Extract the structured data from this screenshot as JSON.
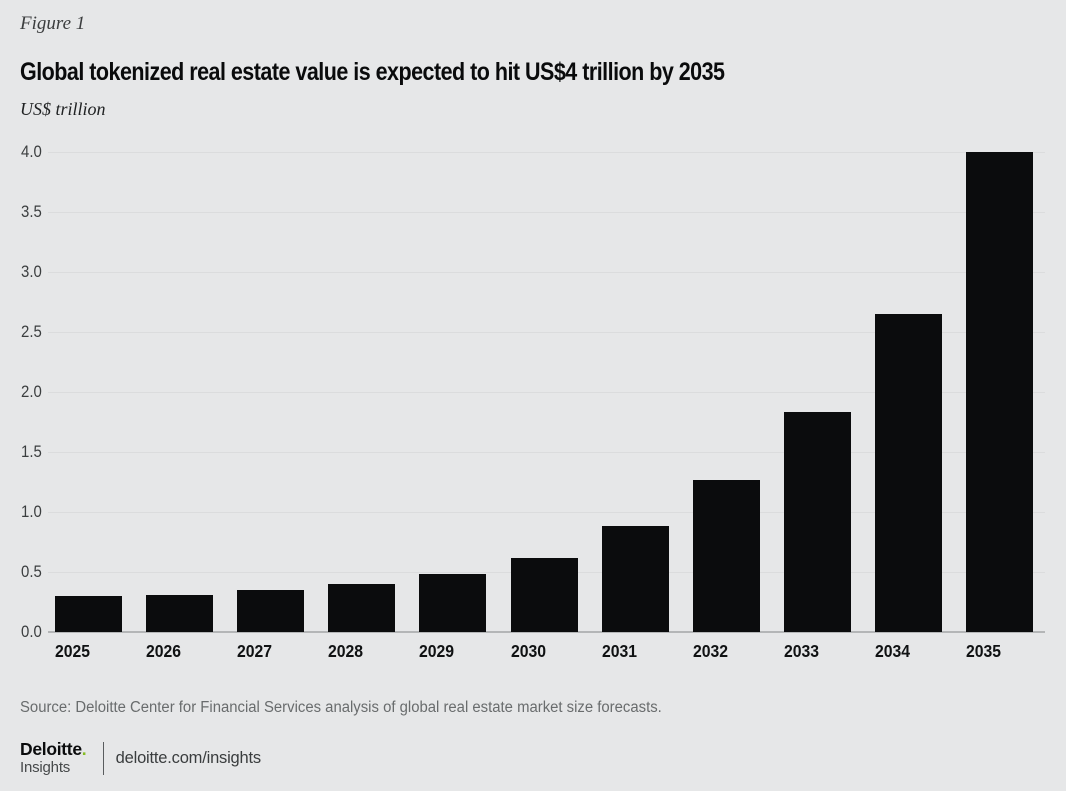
{
  "figure_label": "Figure 1",
  "title": "Global tokenized real estate value is expected to hit US$4 trillion by 2035",
  "subtitle": "US$ trillion",
  "source": "Source: Deloitte Center for Financial Services analysis of global real estate market size forecasts.",
  "footer": {
    "brand": "Deloitte",
    "brand_dot": ".",
    "brand_sub": "Insights",
    "url": "deloitte.com/insights"
  },
  "colors": {
    "background": "#e6e7e8",
    "bar": "#0b0c0d",
    "gridline": "#dbdcdd",
    "baseline": "#b4b6b7",
    "accent_green": "#86bc25",
    "source_text": "#696c6d"
  },
  "chart_data": {
    "type": "bar",
    "categories": [
      "2025",
      "2026",
      "2027",
      "2028",
      "2029",
      "2030",
      "2031",
      "2032",
      "2033",
      "2034",
      "2035"
    ],
    "values": [
      0.3,
      0.31,
      0.35,
      0.4,
      0.48,
      0.62,
      0.88,
      1.27,
      1.83,
      2.65,
      4.0
    ],
    "title": "Global tokenized real estate value is expected to hit US$4 trillion by 2035",
    "xlabel": "",
    "ylabel": "US$ trillion",
    "ylim": [
      0,
      4.0
    ],
    "yticks": [
      0.0,
      0.5,
      1.0,
      1.5,
      2.0,
      2.5,
      3.0,
      3.5,
      4.0
    ],
    "grid": true,
    "legend_position": "none"
  }
}
